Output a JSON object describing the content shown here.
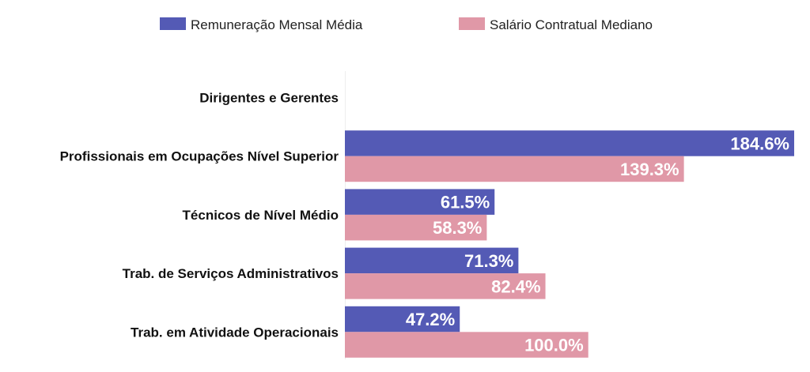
{
  "chart_data": {
    "type": "bar",
    "orientation": "horizontal",
    "title": "",
    "xlabel": "",
    "ylabel": "",
    "xlim": [
      0,
      184.6
    ],
    "grid": false,
    "legend_position": "top-center",
    "categories": [
      "Dirigentes e Gerentes",
      "Profissionais em Ocupações Nível Superior",
      "Técnicos de Nível Médio",
      "Trab. de Serviços Administrativos",
      "Trab. em Atividade Operacionais"
    ],
    "series": [
      {
        "name": "Remuneração Mensal Média",
        "color": "#545ab5",
        "values": [
          null,
          184.6,
          61.5,
          71.3,
          47.2
        ],
        "labels": [
          "",
          "184.6%",
          "61.5%",
          "71.3%",
          "47.2%"
        ]
      },
      {
        "name": "Salário Contratual Mediano",
        "color": "#e098a7",
        "values": [
          null,
          139.3,
          58.3,
          82.4,
          100.0
        ],
        "labels": [
          "",
          "139.3%",
          "58.3%",
          "82.4%",
          "100.0%"
        ]
      }
    ]
  }
}
